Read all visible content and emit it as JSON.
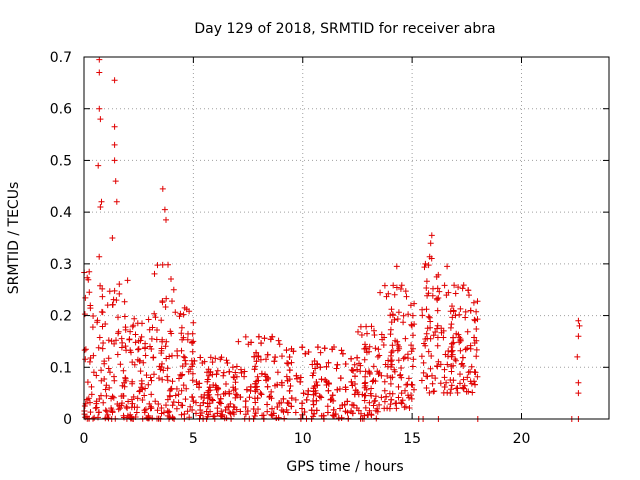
{
  "chart_data": {
    "type": "scatter",
    "title": "Day 129 of 2018, SRMTID for receiver abra",
    "xlabel": "GPS time / hours",
    "ylabel": "SRMTID / TECUs",
    "xlim": [
      0,
      24
    ],
    "ylim": [
      0,
      0.7
    ],
    "x_ticks": [
      0,
      5,
      10,
      15,
      20
    ],
    "x_tick_labels": [
      "0",
      "5",
      "10",
      "15",
      "20"
    ],
    "y_ticks": [
      0,
      0.1,
      0.2,
      0.3,
      0.4,
      0.5,
      0.6,
      0.7
    ],
    "y_tick_labels": [
      "0",
      "0.1",
      "0.2",
      "0.3",
      "0.4",
      "0.5",
      "0.6",
      "0.7"
    ],
    "grid": true,
    "marker": "+",
    "color": "#e00000",
    "notable_points": [
      {
        "x": 0.7,
        "y": 0.695
      },
      {
        "x": 0.7,
        "y": 0.67
      },
      {
        "x": 1.4,
        "y": 0.655
      },
      {
        "x": 0.7,
        "y": 0.6
      },
      {
        "x": 0.75,
        "y": 0.58
      },
      {
        "x": 1.4,
        "y": 0.565
      },
      {
        "x": 1.4,
        "y": 0.53
      },
      {
        "x": 1.4,
        "y": 0.5
      },
      {
        "x": 0.65,
        "y": 0.49
      },
      {
        "x": 1.45,
        "y": 0.46
      },
      {
        "x": 1.5,
        "y": 0.42
      },
      {
        "x": 3.6,
        "y": 0.445
      },
      {
        "x": 3.7,
        "y": 0.405
      },
      {
        "x": 3.75,
        "y": 0.385
      },
      {
        "x": 0.8,
        "y": 0.42
      },
      {
        "x": 0.75,
        "y": 0.41
      },
      {
        "x": 1.3,
        "y": 0.35
      },
      {
        "x": 15.9,
        "y": 0.355
      },
      {
        "x": 15.85,
        "y": 0.34
      },
      {
        "x": 16.6,
        "y": 0.295
      },
      {
        "x": 14.3,
        "y": 0.295
      },
      {
        "x": 22.6,
        "y": 0.19
      },
      {
        "x": 22.65,
        "y": 0.18
      },
      {
        "x": 22.6,
        "y": 0.16
      },
      {
        "x": 22.55,
        "y": 0.12
      },
      {
        "x": 22.6,
        "y": 0.07
      },
      {
        "x": 22.6,
        "y": 0.05
      },
      {
        "x": 22.6,
        "y": 0.0
      },
      {
        "x": 22.3,
        "y": 0.0
      },
      {
        "x": 18.0,
        "y": 0.0
      },
      {
        "x": 16.2,
        "y": 0.0
      },
      {
        "x": 15.3,
        "y": 0.0
      },
      {
        "x": 15.5,
        "y": 0.0
      }
    ],
    "bulk_envelope": [
      {
        "x_from": 0.0,
        "x_to": 1.0,
        "y_min": 0.0,
        "y_max": 0.32
      },
      {
        "x_from": 1.0,
        "x_to": 2.0,
        "y_min": 0.0,
        "y_max": 0.28
      },
      {
        "x_from": 2.0,
        "x_to": 3.2,
        "y_min": 0.0,
        "y_max": 0.2
      },
      {
        "x_from": 3.2,
        "x_to": 4.2,
        "y_min": 0.0,
        "y_max": 0.3
      },
      {
        "x_from": 4.2,
        "x_to": 5.0,
        "y_min": 0.0,
        "y_max": 0.22
      },
      {
        "x_from": 5.0,
        "x_to": 7.0,
        "y_min": 0.0,
        "y_max": 0.12
      },
      {
        "x_from": 7.0,
        "x_to": 9.5,
        "y_min": 0.0,
        "y_max": 0.16
      },
      {
        "x_from": 9.5,
        "x_to": 12.5,
        "y_min": 0.0,
        "y_max": 0.14
      },
      {
        "x_from": 12.5,
        "x_to": 13.5,
        "y_min": 0.0,
        "y_max": 0.18
      },
      {
        "x_from": 13.5,
        "x_to": 15.1,
        "y_min": 0.02,
        "y_max": 0.26
      },
      {
        "x_from": 15.4,
        "x_to": 16.2,
        "y_min": 0.05,
        "y_max": 0.32
      },
      {
        "x_from": 16.2,
        "x_to": 18.0,
        "y_min": 0.05,
        "y_max": 0.26
      }
    ]
  }
}
